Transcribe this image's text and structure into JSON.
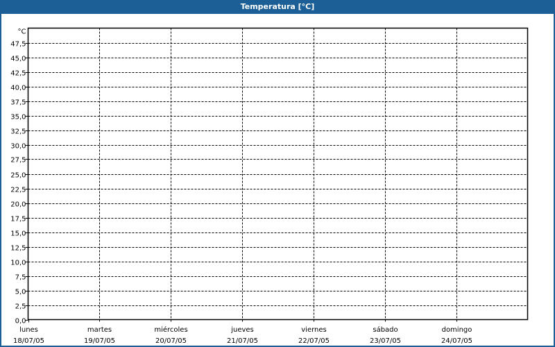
{
  "window": {
    "title": "Temperatura [°C]",
    "title_bar_color": "#1c5f96"
  },
  "chart_data": {
    "type": "line",
    "title": "Temperatura [°C]",
    "ylabel": "°C",
    "xlabel": "",
    "ylim": [
      0,
      50
    ],
    "yticks": [
      "0,0",
      "2,5",
      "5,0",
      "7,5",
      "10,0",
      "12,5",
      "15,0",
      "17,5",
      "20,0",
      "22,5",
      "25,0",
      "27,5",
      "30,0",
      "32,5",
      "35,0",
      "37,5",
      "40,0",
      "42,5",
      "45,0",
      "47,5"
    ],
    "categories": [
      {
        "day": "lunes",
        "date": "18/07/05"
      },
      {
        "day": "martes",
        "date": "19/07/05"
      },
      {
        "day": "miércoles",
        "date": "20/07/05"
      },
      {
        "day": "jueves",
        "date": "21/07/05"
      },
      {
        "day": "viernes",
        "date": "22/07/05"
      },
      {
        "day": "sábado",
        "date": "23/07/05"
      },
      {
        "day": "domingo",
        "date": "24/07/05"
      }
    ],
    "xlim_days": 7,
    "grid": true,
    "series": []
  }
}
